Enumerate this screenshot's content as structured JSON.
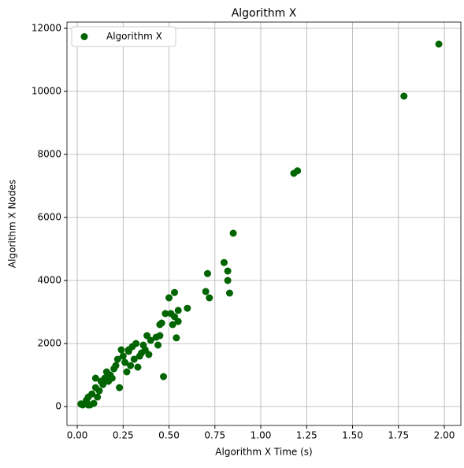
{
  "chart_data": {
    "type": "scatter",
    "title": "Algorithm X",
    "x_label": "Algorithm X Time (s)",
    "y_label": "Algorithm X Nodes",
    "series": [
      {
        "name": "Algorithm X",
        "color": "#006400",
        "x": [
          1.97,
          1.78,
          1.18,
          1.2,
          0.85,
          0.8,
          0.82,
          0.82,
          0.83,
          0.71,
          0.7,
          0.72,
          0.53,
          0.5,
          0.6,
          0.55,
          0.48,
          0.51,
          0.53,
          0.52,
          0.55,
          0.46,
          0.45,
          0.54,
          0.47,
          0.38,
          0.43,
          0.45,
          0.4,
          0.44,
          0.36,
          0.32,
          0.3,
          0.35,
          0.28,
          0.25,
          0.22,
          0.2,
          0.18,
          0.15,
          0.13,
          0.1,
          0.08,
          0.06,
          0.05,
          0.04,
          0.03,
          0.07,
          0.09,
          0.12,
          0.14,
          0.17,
          0.19,
          0.23,
          0.21,
          0.26,
          0.27,
          0.29,
          0.31,
          0.33,
          0.37,
          0.39,
          0.24,
          0.16,
          0.11,
          0.06,
          0.02,
          0.1,
          0.28,
          0.34
        ],
        "values": [
          11500,
          9850,
          7400,
          7480,
          5500,
          4570,
          4300,
          4000,
          3600,
          4220,
          3650,
          3450,
          3620,
          3450,
          3120,
          3050,
          2950,
          2950,
          2850,
          2600,
          2700,
          2650,
          2600,
          2180,
          950,
          2250,
          2200,
          2250,
          2100,
          1950,
          1950,
          2000,
          1900,
          1700,
          1750,
          1600,
          1500,
          1200,
          1000,
          900,
          800,
          600,
          400,
          300,
          200,
          100,
          50,
          50,
          100,
          500,
          700,
          800,
          900,
          600,
          1300,
          1400,
          1100,
          1300,
          1500,
          1250,
          1800,
          1650,
          1800,
          1100,
          300,
          50,
          80,
          900,
          1800,
          1600
        ]
      }
    ],
    "xlim": [
      -0.056,
      2.09
    ],
    "ylim": [
      -600,
      12200
    ],
    "xticks": [
      {
        "value": 0,
        "label": "0.00"
      },
      {
        "value": 0.25,
        "label": "0.25"
      },
      {
        "value": 0.5,
        "label": "0.50"
      },
      {
        "value": 0.75,
        "label": "0.75"
      },
      {
        "value": 1,
        "label": "1.00"
      },
      {
        "value": 1.25,
        "label": "1.25"
      },
      {
        "value": 1.5,
        "label": "1.50"
      },
      {
        "value": 1.75,
        "label": "1.75"
      },
      {
        "value": 2,
        "label": "2.00"
      }
    ],
    "yticks": [
      0,
      2000,
      4000,
      6000,
      8000,
      10000,
      12000
    ],
    "grid": true,
    "legend": "upper-left"
  }
}
